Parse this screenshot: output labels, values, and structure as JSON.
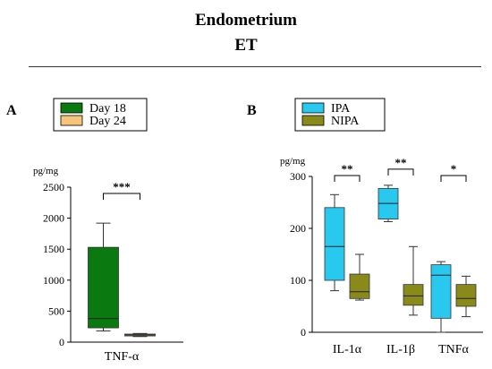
{
  "header": {
    "title": "Endometrium",
    "subtitle": "ET"
  },
  "chart_data": [
    {
      "type": "boxplot",
      "panel_label": "A",
      "ylabel": "pg/mg",
      "ylim": [
        0,
        2500
      ],
      "yticks": [
        0,
        500,
        1000,
        1500,
        2000,
        2500
      ],
      "categories": [
        "TNF-α"
      ],
      "legend": [
        {
          "name": "Day 18",
          "color": "#0a7a10"
        },
        {
          "name": "Day 24",
          "color": "#f7c57a"
        }
      ],
      "series": [
        {
          "name": "Day 18",
          "color": "#0a7a10",
          "values": [
            {
              "min": 180,
              "q1": 230,
              "median": 380,
              "q3": 1530,
              "max": 1920
            }
          ]
        },
        {
          "name": "Day 24",
          "color": "#f7c57a",
          "values": [
            {
              "min": 90,
              "q1": 100,
              "median": 115,
              "q3": 130,
              "max": 140
            }
          ]
        }
      ],
      "annotations": [
        {
          "category": "TNF-α",
          "text": "***"
        }
      ]
    },
    {
      "type": "boxplot",
      "panel_label": "B",
      "ylabel": "pg/mg",
      "ylim": [
        0,
        300
      ],
      "yticks": [
        0,
        100,
        200,
        300
      ],
      "categories": [
        "IL-1α",
        "IL-1β",
        "TNFα"
      ],
      "legend": [
        {
          "name": "IPA",
          "color": "#29c8ee"
        },
        {
          "name": "NIPA",
          "color": "#8a8a1a"
        }
      ],
      "series": [
        {
          "name": "IPA",
          "color": "#29c8ee",
          "values": [
            {
              "min": 80,
              "q1": 100,
              "median": 165,
              "q3": 240,
              "max": 265
            },
            {
              "min": 213,
              "q1": 218,
              "median": 248,
              "q3": 277,
              "max": 283
            },
            {
              "min": 0,
              "q1": 27,
              "median": 110,
              "q3": 130,
              "max": 136
            }
          ]
        },
        {
          "name": "NIPA",
          "color": "#8a8a1a",
          "values": [
            {
              "min": 62,
              "q1": 65,
              "median": 78,
              "q3": 112,
              "max": 150
            },
            {
              "min": 33,
              "q1": 52,
              "median": 70,
              "q3": 92,
              "max": 165
            },
            {
              "min": 30,
              "q1": 50,
              "median": 65,
              "q3": 92,
              "max": 108
            }
          ]
        }
      ],
      "annotations": [
        {
          "category": "IL-1α",
          "text": "**"
        },
        {
          "category": "IL-1β",
          "text": "**"
        },
        {
          "category": "TNFα",
          "text": "*"
        }
      ]
    }
  ]
}
